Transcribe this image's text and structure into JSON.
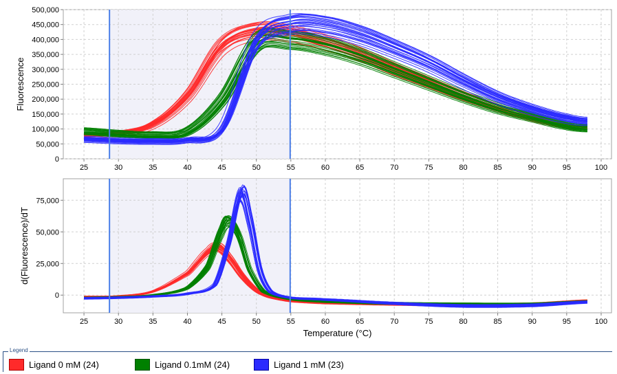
{
  "chart_data": [
    {
      "type": "line",
      "ylabel": "Fluorescence",
      "xlabel": "",
      "xlim": [
        22,
        101.5
      ],
      "ylim": [
        0,
        500000
      ],
      "xticks": [
        "25",
        "30",
        "35",
        "40",
        "45",
        "50",
        "55",
        "60",
        "65",
        "70",
        "75",
        "80",
        "85",
        "90",
        "95",
        "100"
      ],
      "yticks": [
        "0",
        "50,000",
        "100,000",
        "150,000",
        "200,000",
        "250,000",
        "300,000",
        "350,000",
        "400,000",
        "450,000",
        "500,000"
      ],
      "grid": true,
      "region": [
        28.7,
        54.9
      ],
      "series": [
        {
          "name": "Ligand 0 mM (24)",
          "color": "#ff2a2a",
          "count": 24,
          "peak_T": 49.5,
          "x": [
            25,
            30,
            35,
            40,
            45,
            50,
            55,
            60,
            65,
            70,
            75,
            80,
            85,
            90,
            95,
            98
          ],
          "y": [
            78000,
            85000,
            115000,
            210000,
            380000,
            430000,
            420000,
            390000,
            350000,
            300000,
            255000,
            210000,
            170000,
            135000,
            110000,
            103000
          ]
        },
        {
          "name": "Ligand 0.1mM (24)",
          "color": "#008000",
          "count": 24,
          "peak_T": 51.5,
          "x": [
            25,
            30,
            35,
            40,
            45,
            50,
            55,
            60,
            65,
            70,
            75,
            80,
            85,
            90,
            95,
            98
          ],
          "y": [
            93000,
            85000,
            80000,
            92000,
            200000,
            390000,
            400000,
            380000,
            345000,
            300000,
            255000,
            210000,
            170000,
            140000,
            112000,
            103000
          ]
        },
        {
          "name": "Ligand 1 mM (23)",
          "color": "#2a2aff",
          "count": 23,
          "peak_T": 53.5,
          "x": [
            25,
            30,
            35,
            40,
            45,
            50,
            55,
            60,
            65,
            70,
            75,
            80,
            85,
            90,
            95,
            98
          ],
          "y": [
            65000,
            60000,
            58000,
            62000,
            100000,
            390000,
            450000,
            445000,
            415000,
            370000,
            320000,
            260000,
            205000,
            165000,
            135000,
            125000
          ]
        }
      ]
    },
    {
      "type": "line",
      "ylabel": "d(Fluorescence)/dT",
      "xlabel": "Temperature (°C)",
      "xlim": [
        22,
        101.5
      ],
      "ylim": [
        -14000,
        92000
      ],
      "xticks": [
        "25",
        "30",
        "35",
        "40",
        "45",
        "50",
        "55",
        "60",
        "65",
        "70",
        "75",
        "80",
        "85",
        "90",
        "95",
        "100"
      ],
      "yticks": [
        "0",
        "25,000",
        "50,000",
        "75,000"
      ],
      "grid": true,
      "region": [
        28.7,
        54.9
      ],
      "series": [
        {
          "name": "Ligand 0 mM (24)",
          "color": "#ff2a2a",
          "count": 24,
          "x": [
            25,
            30,
            35,
            40,
            43,
            44.5,
            46,
            48,
            50,
            52,
            55,
            60,
            70,
            80,
            90,
            98
          ],
          "y": [
            -1500,
            -1000,
            3000,
            17000,
            34000,
            38000,
            30000,
            15000,
            4000,
            -1500,
            -4500,
            -6000,
            -7000,
            -7500,
            -7000,
            -4500
          ]
        },
        {
          "name": "Ligand 0.1mM (24)",
          "color": "#008000",
          "count": 24,
          "x": [
            25,
            30,
            35,
            40,
            43,
            45,
            46,
            47.5,
            49,
            51,
            55,
            60,
            70,
            80,
            90,
            98
          ],
          "y": [
            -2000,
            -1500,
            0,
            5500,
            22000,
            50000,
            58000,
            46000,
            20000,
            3000,
            -3000,
            -5000,
            -6500,
            -7000,
            -7000,
            -5000
          ]
        },
        {
          "name": "Ligand 1 mM (23)",
          "color": "#2a2aff",
          "count": 23,
          "x": [
            25,
            30,
            35,
            40,
            44,
            46,
            47.8,
            49,
            50.5,
            52,
            55,
            60,
            70,
            80,
            90,
            98
          ],
          "y": [
            -2500,
            -2000,
            -1000,
            1000,
            8000,
            40000,
            80000,
            60000,
            20000,
            3000,
            -2000,
            -3500,
            -6500,
            -8500,
            -8000,
            -5500
          ]
        }
      ]
    }
  ],
  "legend": {
    "title": "Legend",
    "items": [
      {
        "label": "Ligand 0 mM (24)",
        "color": "#ff2a2a",
        "border": "#b00000"
      },
      {
        "label": "Ligand 0.1mM (24)",
        "color": "#008000",
        "border": "#005000"
      },
      {
        "label": "Ligand 1 mM (23)",
        "color": "#2a2aff",
        "border": "#0000a0"
      }
    ]
  }
}
